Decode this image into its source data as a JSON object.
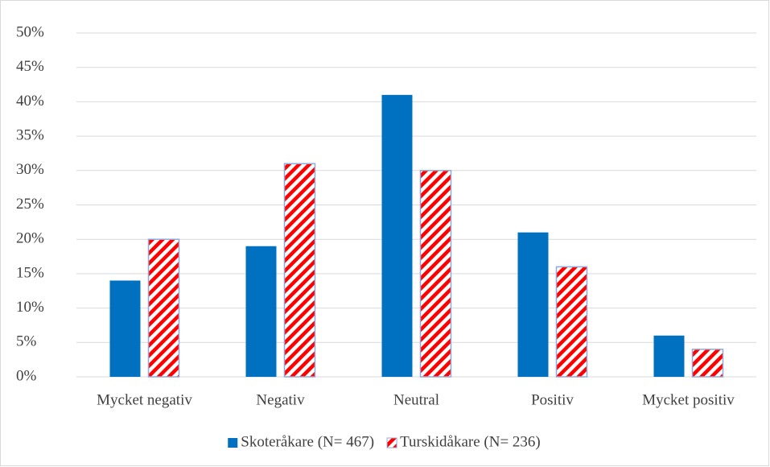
{
  "chart_data": {
    "type": "bar",
    "categories": [
      "Mycket negativ",
      "Negativ",
      "Neutral",
      "Positiv",
      "Mycket positiv"
    ],
    "series": [
      {
        "name": "Skoteråkare (N= 467)",
        "color": "#0070c0",
        "values": [
          14,
          19,
          41,
          21,
          6
        ]
      },
      {
        "name": "Turskidåkare (N= 236)",
        "color": "#ff0000",
        "pattern": "diagonal-stripes",
        "values": [
          20,
          31,
          30,
          16,
          4
        ]
      }
    ],
    "ylim": [
      0,
      50
    ],
    "yticks": [
      {
        "value": 0,
        "label": "0%"
      },
      {
        "value": 5,
        "label": "5%"
      },
      {
        "value": 10,
        "label": "10%"
      },
      {
        "value": 15,
        "label": "15%"
      },
      {
        "value": 20,
        "label": "20%"
      },
      {
        "value": 25,
        "label": "25%"
      },
      {
        "value": 30,
        "label": "30%"
      },
      {
        "value": 35,
        "label": "35%"
      },
      {
        "value": 40,
        "label": "40%"
      },
      {
        "value": 45,
        "label": "45%"
      },
      {
        "value": 50,
        "label": "50%"
      }
    ],
    "grid": true,
    "legend": "bottom"
  }
}
